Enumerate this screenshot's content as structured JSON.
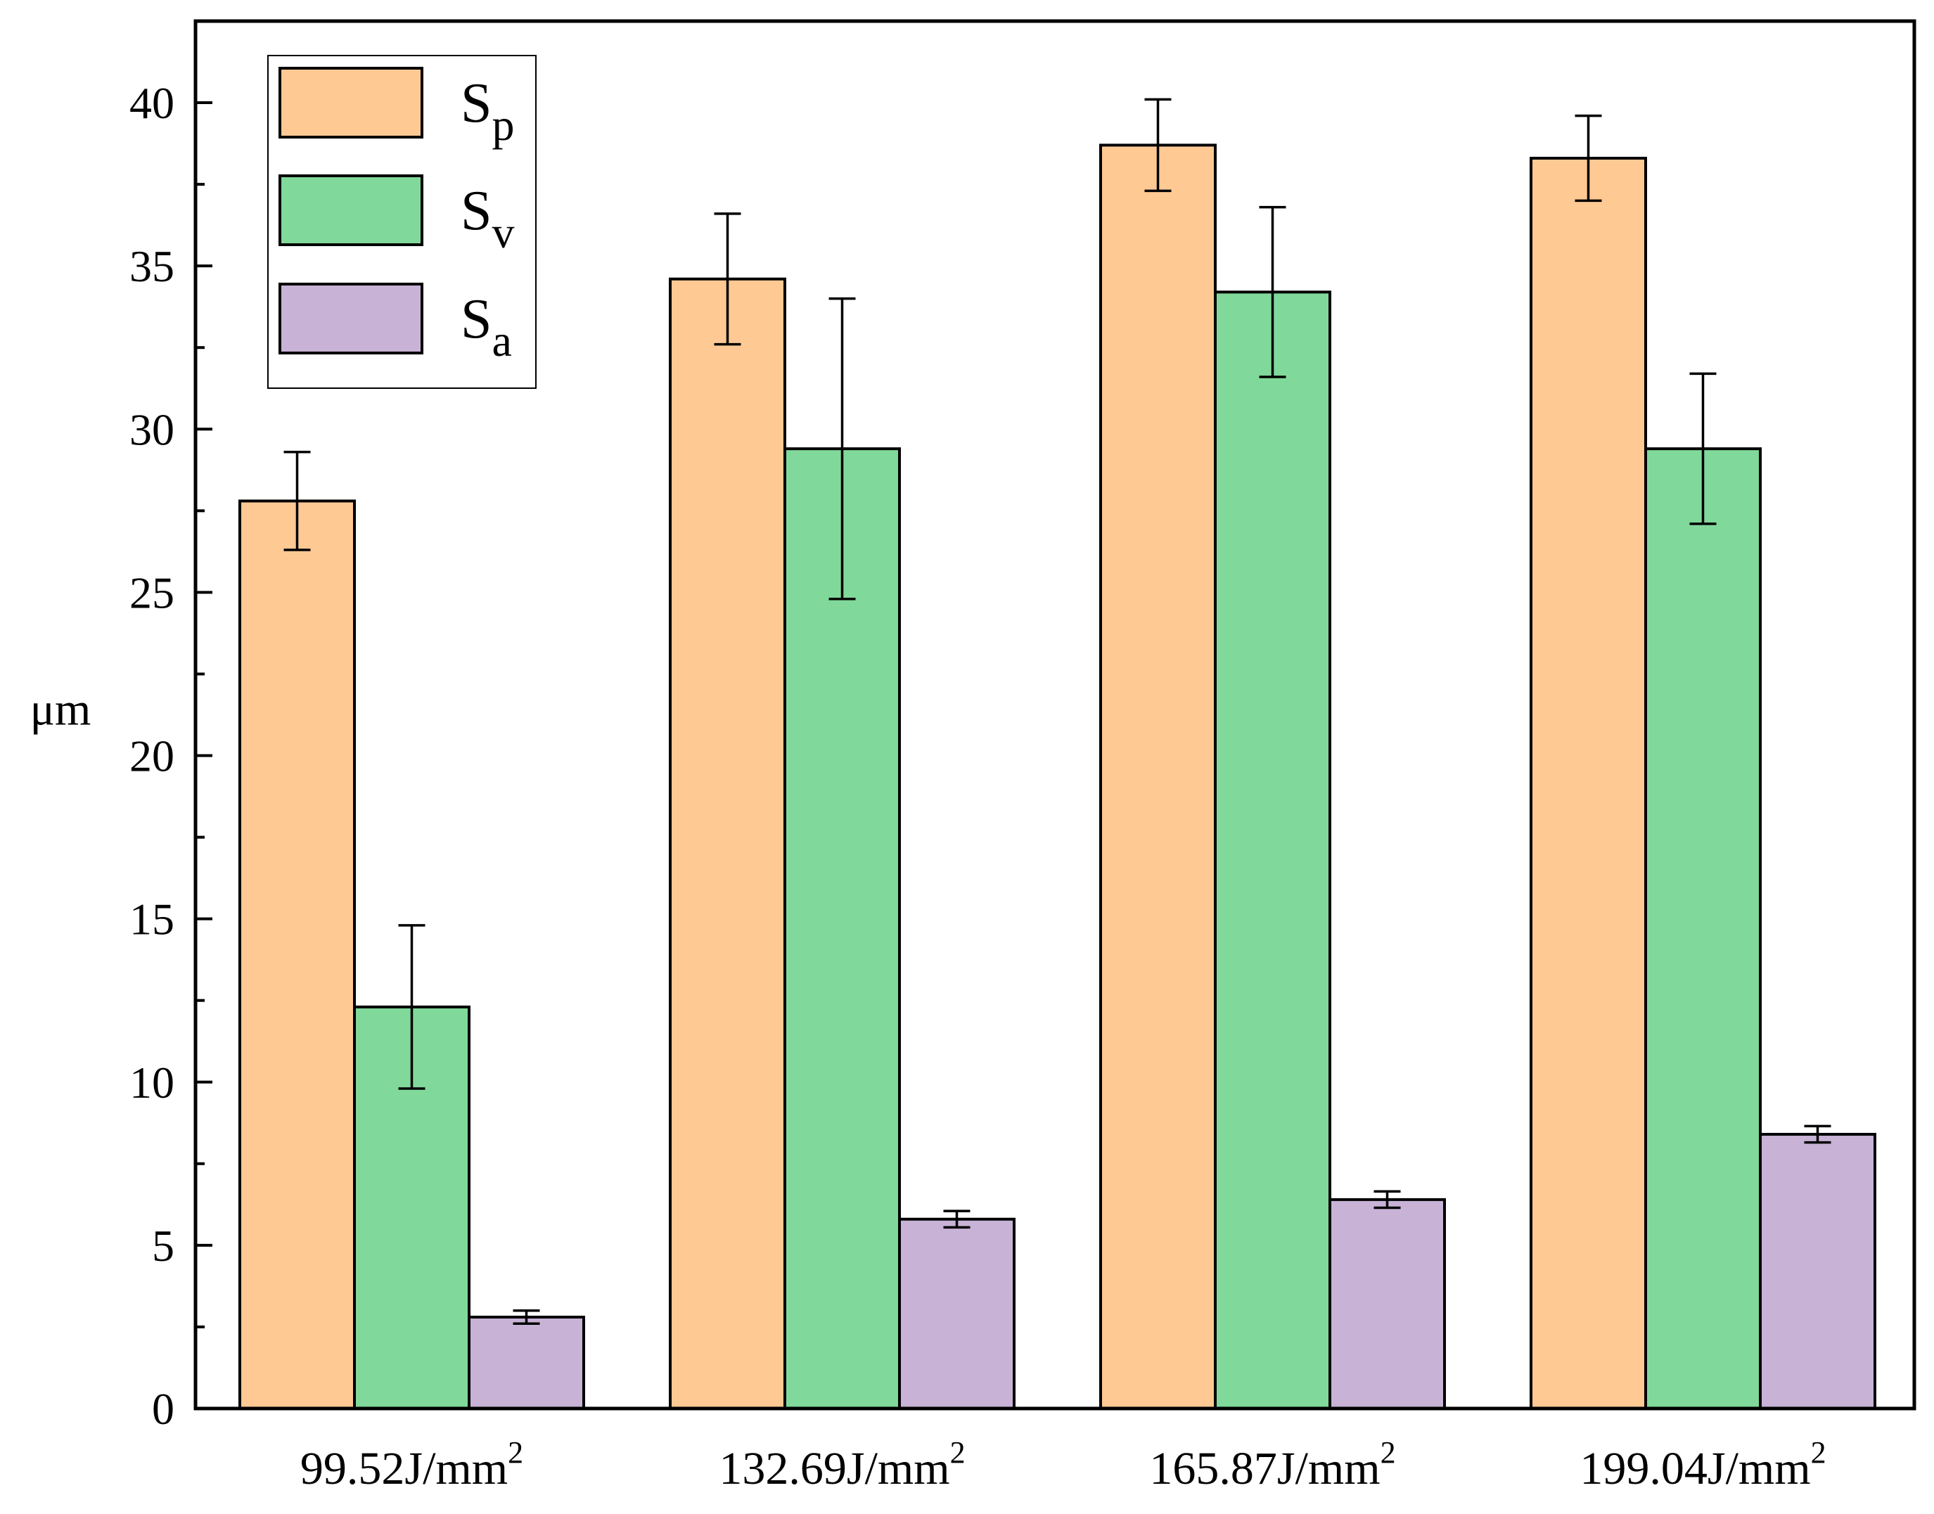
{
  "chart_data": {
    "type": "bar",
    "title": "",
    "xlabel": "",
    "ylabel": "μm",
    "ylim": [
      0,
      42.5
    ],
    "yticks": [
      "0",
      "5",
      "10",
      "15",
      "20",
      "25",
      "30",
      "35",
      "40"
    ],
    "grid": false,
    "legend_position": "top-left",
    "categories": [
      {
        "base": "99.52J/mm",
        "sup": "2"
      },
      {
        "base": "132.69J/mm",
        "sup": "2"
      },
      {
        "base": "165.87J/mm",
        "sup": "2"
      },
      {
        "base": "199.04J/mm",
        "sup": "2"
      }
    ],
    "series": [
      {
        "name": "Sp",
        "label_main": "S",
        "label_sub": "p",
        "color": "#FFC994",
        "values": [
          27.8,
          34.6,
          38.7,
          38.3
        ],
        "errors": [
          1.5,
          2.0,
          1.4,
          1.3
        ]
      },
      {
        "name": "Sv",
        "label_main": "S",
        "label_sub": "v",
        "color": "#80D99A",
        "values": [
          12.3,
          29.4,
          34.2,
          29.4
        ],
        "errors": [
          2.5,
          4.6,
          2.6,
          2.3
        ]
      },
      {
        "name": "Sa",
        "label_main": "S",
        "label_sub": "a",
        "color": "#C8B3D7",
        "values": [
          2.8,
          5.8,
          6.4,
          8.4
        ],
        "errors": [
          0.2,
          0.25,
          0.25,
          0.25
        ]
      }
    ]
  }
}
